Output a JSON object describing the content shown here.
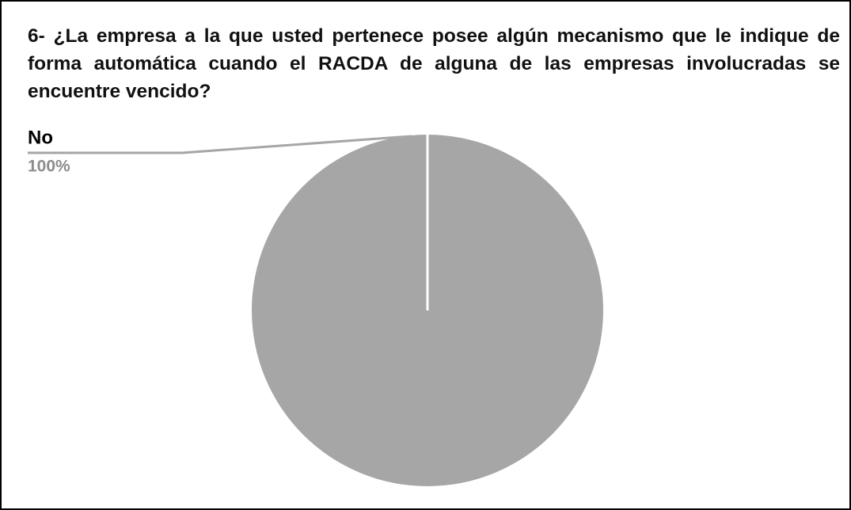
{
  "chart_data": {
    "type": "pie",
    "title": "6- ¿La empresa a la que usted pertenece posee algún mecanismo que le indique de forma automática cuando el RACDA de alguna de las empresas involucradas se encuentre vencido?",
    "categories": [
      "No"
    ],
    "values": [
      100
    ],
    "value_labels": [
      "100%"
    ],
    "colors": [
      "#a6a6a6"
    ]
  }
}
